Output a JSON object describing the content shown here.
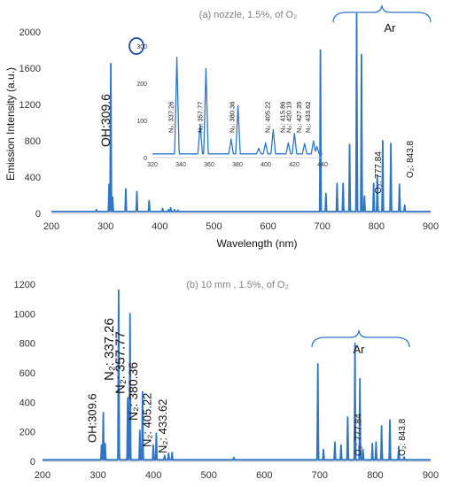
{
  "chart_data": [
    {
      "type": "line",
      "title": "(a) nozzle, 1.5%, of O₂",
      "xlabel": "Wavelength (nm)",
      "ylabel": "Emission Intensity (a.u.)",
      "xlim": [
        200,
        900
      ],
      "ylim": [
        0,
        2000
      ],
      "xticks": [
        "200",
        "300",
        "400",
        "500",
        "600",
        "700",
        "800",
        "900"
      ],
      "yticks": [
        "0",
        "400",
        "800",
        "1200",
        "1600",
        "2000"
      ],
      "color": "#2e75c8",
      "baseline": 20,
      "peaks": [
        {
          "x": 283,
          "y": 40
        },
        {
          "x": 306.5,
          "y": 320
        },
        {
          "x": 309.6,
          "y": 1650
        },
        {
          "x": 313,
          "y": 180
        },
        {
          "x": 337.26,
          "y": 270
        },
        {
          "x": 357.77,
          "y": 240
        },
        {
          "x": 380.36,
          "y": 140
        },
        {
          "x": 405.22,
          "y": 55
        },
        {
          "x": 415.86,
          "y": 40
        },
        {
          "x": 420.19,
          "y": 60
        },
        {
          "x": 427.35,
          "y": 40
        },
        {
          "x": 433.62,
          "y": 35
        },
        {
          "x": 696.5,
          "y": 1800
        },
        {
          "x": 706.7,
          "y": 220
        },
        {
          "x": 727.3,
          "y": 330
        },
        {
          "x": 738.4,
          "y": 330
        },
        {
          "x": 750.4,
          "y": 760
        },
        {
          "x": 763.5,
          "y": 2200
        },
        {
          "x": 772.4,
          "y": 1750
        },
        {
          "x": 777.84,
          "y": 190
        },
        {
          "x": 794.8,
          "y": 330
        },
        {
          "x": 801.5,
          "y": 420
        },
        {
          "x": 811.5,
          "y": 800
        },
        {
          "x": 826.5,
          "y": 770
        },
        {
          "x": 842.5,
          "y": 320
        },
        {
          "x": 852.1,
          "y": 90
        }
      ],
      "annotations": [
        "OH:309.6",
        "Ar",
        "O₂: 777.84",
        "O₂: 843.8"
      ],
      "inset": {
        "xlim": [
          320,
          440
        ],
        "ylim": [
          0,
          300
        ],
        "xticks": [
          "320",
          "340",
          "360",
          "380",
          "400",
          "420",
          "440"
        ],
        "ytick_labels": [
          "0",
          "100",
          "200",
          "300"
        ],
        "baseline": 10,
        "peaks": [
          {
            "x": 337.26,
            "y": 270
          },
          {
            "x": 353.7,
            "y": 90
          },
          {
            "x": 357.77,
            "y": 240
          },
          {
            "x": 375.5,
            "y": 50
          },
          {
            "x": 380.36,
            "y": 140
          },
          {
            "x": 395,
            "y": 25
          },
          {
            "x": 399.8,
            "y": 40
          },
          {
            "x": 405.22,
            "y": 75
          },
          {
            "x": 415.86,
            "y": 40
          },
          {
            "x": 420.19,
            "y": 65
          },
          {
            "x": 427.35,
            "y": 38
          },
          {
            "x": 433.62,
            "y": 45
          },
          {
            "x": 436,
            "y": 30
          }
        ],
        "labels": [
          {
            "text": "N₂: 337.26",
            "x": 337.26
          },
          {
            "text": "N₂: 357.77",
            "x": 357.77
          },
          {
            "text": "N₂: 380.36",
            "x": 380.36
          },
          {
            "text": "N₂: 405.22",
            "x": 405.22
          },
          {
            "text": "N₂: 415.86",
            "x": 415.86
          },
          {
            "text": "N₂: 420.19",
            "x": 420.19
          },
          {
            "text": "N₂: 427.35",
            "x": 427.35
          },
          {
            "text": "N₂: 433.62",
            "x": 433.62
          }
        ]
      }
    },
    {
      "type": "line",
      "title": "(b) 10 mm , 1.5%, of O₂",
      "xlabel": "",
      "ylabel": "",
      "xlim": [
        200,
        900
      ],
      "ylim": [
        0,
        1200
      ],
      "xticks": [
        "200",
        "300",
        "400",
        "500",
        "600",
        "700",
        "800",
        "900"
      ],
      "yticks": [
        "0",
        "200",
        "400",
        "600",
        "800",
        "1000",
        "1200"
      ],
      "color": "#2e75c8",
      "baseline": 10,
      "peaks": [
        {
          "x": 306.5,
          "y": 110
        },
        {
          "x": 309.6,
          "y": 330
        },
        {
          "x": 313,
          "y": 120
        },
        {
          "x": 337.26,
          "y": 1160
        },
        {
          "x": 353.7,
          "y": 430
        },
        {
          "x": 357.77,
          "y": 1000
        },
        {
          "x": 375.5,
          "y": 210
        },
        {
          "x": 380.36,
          "y": 470
        },
        {
          "x": 399.8,
          "y": 110
        },
        {
          "x": 405.22,
          "y": 190
        },
        {
          "x": 420.19,
          "y": 40
        },
        {
          "x": 427.35,
          "y": 55
        },
        {
          "x": 433.62,
          "y": 60
        },
        {
          "x": 545,
          "y": 25
        },
        {
          "x": 696.5,
          "y": 660
        },
        {
          "x": 706.7,
          "y": 80
        },
        {
          "x": 727.3,
          "y": 130
        },
        {
          "x": 738.4,
          "y": 110
        },
        {
          "x": 750.4,
          "y": 300
        },
        {
          "x": 763.5,
          "y": 800
        },
        {
          "x": 772.4,
          "y": 560
        },
        {
          "x": 777.84,
          "y": 80
        },
        {
          "x": 794.8,
          "y": 120
        },
        {
          "x": 801.5,
          "y": 130
        },
        {
          "x": 811.5,
          "y": 240
        },
        {
          "x": 826.5,
          "y": 280
        },
        {
          "x": 842.5,
          "y": 100
        },
        {
          "x": 852.1,
          "y": 30
        }
      ],
      "annotations": [
        {
          "text": "OH:309.6",
          "x": 309.6
        },
        {
          "text": "N₂: 337.26",
          "x": 337.26
        },
        {
          "text": "N₂: 357.77",
          "x": 357.77
        },
        {
          "text": "N₂: 380.36",
          "x": 380.36
        },
        {
          "text": "N₂: 405.22",
          "x": 405.22
        },
        {
          "text": "N₂: 433.62",
          "x": 433.62
        },
        {
          "text": "Ar"
        },
        {
          "text": "O₂: 777.84",
          "x": 777.84
        },
        {
          "text": "O₂: 843.8",
          "x": 843.8
        }
      ]
    }
  ]
}
